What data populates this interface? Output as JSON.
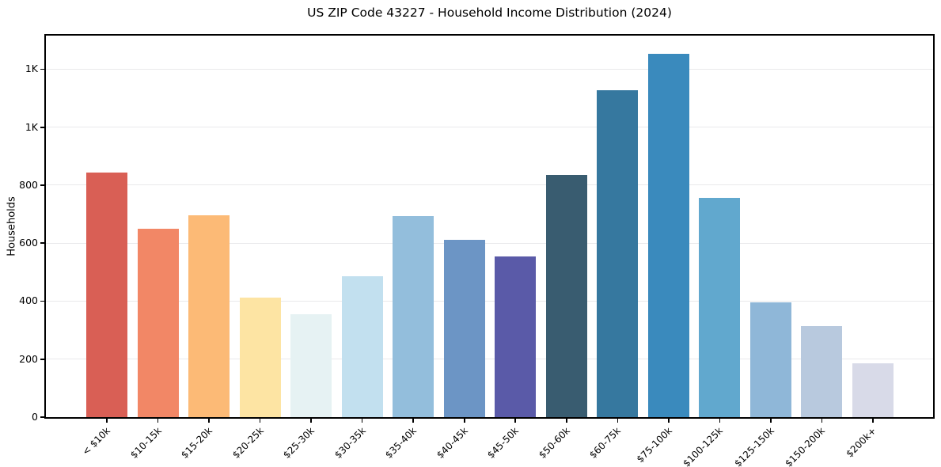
{
  "figure_title": "US ZIP Code 43227 - Household Income Distribution (2024)",
  "chart_data": {
    "type": "bar",
    "title": "US ZIP Code 43227 - Household Income Distribution (2024)",
    "xlabel": "",
    "ylabel": "Households",
    "categories": [
      "< $10k",
      "$10-15k",
      "$15-20k",
      "$20-25k",
      "$25-30k",
      "$30-35k",
      "$35-40k",
      "$40-45k",
      "$45-50k",
      "$50-60k",
      "$60-75k",
      "$75-100k",
      "$100-125k",
      "$125-150k",
      "$150-200k",
      "$200k+"
    ],
    "values": [
      845,
      650,
      697,
      411,
      356,
      486,
      694,
      612,
      554,
      835,
      1128,
      1254,
      756,
      395,
      313,
      185
    ],
    "bar_colors": [
      "#d95f55",
      "#f28766",
      "#fcba76",
      "#fde4a3",
      "#e6f2f3",
      "#c2e0ef",
      "#93bedc",
      "#6c95c5",
      "#5a5aa8",
      "#395c70",
      "#36789f",
      "#3a8abd",
      "#61a8ce",
      "#8fb7d8",
      "#b8c9de",
      "#d8dae8"
    ],
    "ylim": [
      0,
      1316
    ],
    "yticks": [
      0,
      200,
      400,
      600,
      800,
      1000,
      1200
    ],
    "ytick_labels": [
      "0",
      "200",
      "400",
      "600",
      "800",
      "1K",
      "1K"
    ],
    "xtick_label_rotation": 45,
    "grid": "horizontal",
    "grid_color": "#e9e9eb",
    "axis_color": "#000000",
    "background_color": "#ffffff",
    "legend": "none"
  }
}
